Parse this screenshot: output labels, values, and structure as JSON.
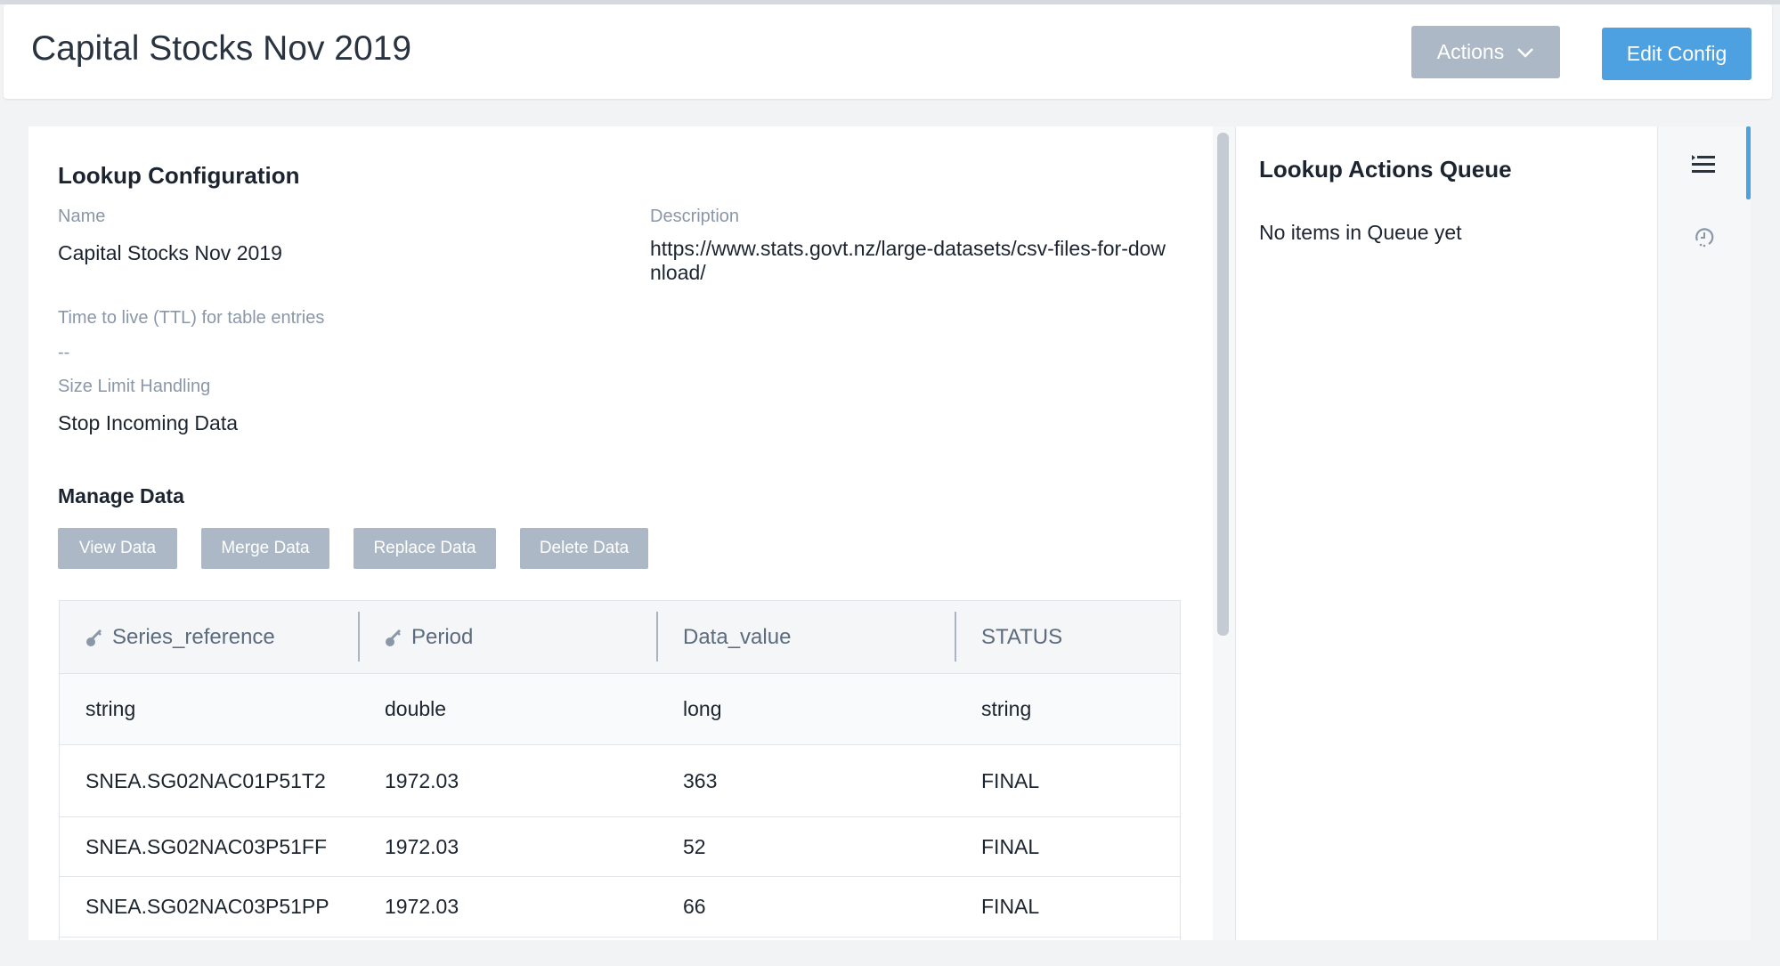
{
  "header": {
    "title": "Capital Stocks Nov 2019",
    "actions_label": "Actions",
    "edit_label": "Edit Config"
  },
  "config": {
    "heading": "Lookup Configuration",
    "name_label": "Name",
    "name_value": "Capital Stocks Nov 2019",
    "description_label": "Description",
    "description_value": "https://www.stats.govt.nz/large-datasets/csv-files-for-download/",
    "ttl_label": "Time to live (TTL) for table entries",
    "ttl_value": "--",
    "size_label": "Size Limit Handling",
    "size_value": "Stop Incoming Data"
  },
  "manage": {
    "heading": "Manage Data",
    "buttons": [
      "View Data",
      "Merge Data",
      "Replace Data",
      "Delete Data"
    ]
  },
  "table": {
    "columns": [
      {
        "label": "Series_reference",
        "key": true
      },
      {
        "label": "Period",
        "key": true
      },
      {
        "label": "Data_value",
        "key": false
      },
      {
        "label": "STATUS",
        "key": false
      }
    ],
    "types": [
      "string",
      "double",
      "long",
      "string"
    ],
    "rows": [
      [
        "SNEA.SG02NAC01P51T2",
        "1972.03",
        "363",
        "FINAL"
      ],
      [
        "SNEA.SG02NAC03P51FF",
        "1972.03",
        "52",
        "FINAL"
      ],
      [
        "SNEA.SG02NAC03P51PP",
        "1972.03",
        "66",
        "FINAL"
      ]
    ]
  },
  "queue": {
    "heading": "Lookup Actions Queue",
    "empty_text": "No items in Queue yet"
  },
  "rail": {
    "icons": [
      "queue-list-icon",
      "history-icon"
    ]
  },
  "colors": {
    "primary": "#4ea1e0",
    "secondary": "#adb8c6"
  }
}
